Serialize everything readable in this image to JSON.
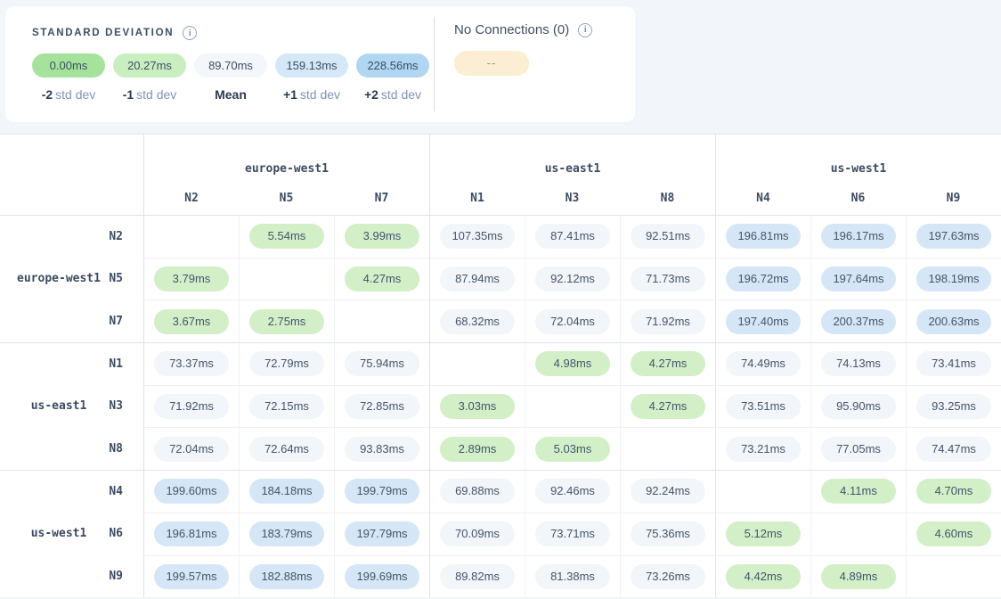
{
  "legend_card": {
    "title": "STANDARD DEVIATION",
    "items": [
      {
        "value": "0.00ms",
        "label_prefix": "-2",
        "label_suffix": "std dev",
        "color": "#a5e39d"
      },
      {
        "value": "20.27ms",
        "label_prefix": "-1",
        "label_suffix": "std dev",
        "color": "#c9efc0"
      },
      {
        "value": "89.70ms",
        "label_prefix": "Mean",
        "label_suffix": "",
        "color": "#f3f6fb"
      },
      {
        "value": "159.13ms",
        "label_prefix": "+1",
        "label_suffix": "std dev",
        "color": "#d5e8f7"
      },
      {
        "value": "228.56ms",
        "label_prefix": "+2",
        "label_suffix": "std dev",
        "color": "#b0d6f2"
      }
    ],
    "no_connections": {
      "title": "No Connections (0)",
      "chip_label": "--",
      "chip_color": "#fceed2"
    }
  },
  "matrix": {
    "cell_colors": {
      "green": "#d3efc8",
      "neutral": "#f2f5f9",
      "blue": "#d5e7f6"
    },
    "column_groups": [
      {
        "name": "europe-west1",
        "nodes": [
          "N2",
          "N5",
          "N7"
        ]
      },
      {
        "name": "us-east1",
        "nodes": [
          "N1",
          "N3",
          "N8"
        ]
      },
      {
        "name": "us-west1",
        "nodes": [
          "N4",
          "N6",
          "N9"
        ]
      }
    ],
    "rows": [
      {
        "node": "N2",
        "region": "europe-west1",
        "region_label_row": false,
        "cells": [
          null,
          {
            "v": "5.54ms",
            "tone": "green"
          },
          {
            "v": "3.99ms",
            "tone": "green"
          },
          {
            "v": "107.35ms",
            "tone": "neutral"
          },
          {
            "v": "87.41ms",
            "tone": "neutral"
          },
          {
            "v": "92.51ms",
            "tone": "neutral"
          },
          {
            "v": "196.81ms",
            "tone": "blue"
          },
          {
            "v": "196.17ms",
            "tone": "blue"
          },
          {
            "v": "197.63ms",
            "tone": "blue"
          }
        ]
      },
      {
        "node": "N5",
        "region": "europe-west1",
        "region_label_row": true,
        "cells": [
          {
            "v": "3.79ms",
            "tone": "green"
          },
          null,
          {
            "v": "4.27ms",
            "tone": "green"
          },
          {
            "v": "87.94ms",
            "tone": "neutral"
          },
          {
            "v": "92.12ms",
            "tone": "neutral"
          },
          {
            "v": "71.73ms",
            "tone": "neutral"
          },
          {
            "v": "196.72ms",
            "tone": "blue"
          },
          {
            "v": "197.64ms",
            "tone": "blue"
          },
          {
            "v": "198.19ms",
            "tone": "blue"
          }
        ]
      },
      {
        "node": "N7",
        "region": "europe-west1",
        "region_label_row": false,
        "cells": [
          {
            "v": "3.67ms",
            "tone": "green"
          },
          {
            "v": "2.75ms",
            "tone": "green"
          },
          null,
          {
            "v": "68.32ms",
            "tone": "neutral"
          },
          {
            "v": "72.04ms",
            "tone": "neutral"
          },
          {
            "v": "71.92ms",
            "tone": "neutral"
          },
          {
            "v": "197.40ms",
            "tone": "blue"
          },
          {
            "v": "200.37ms",
            "tone": "blue"
          },
          {
            "v": "200.63ms",
            "tone": "blue"
          }
        ]
      },
      {
        "node": "N1",
        "region": "us-east1",
        "region_label_row": false,
        "cells": [
          {
            "v": "73.37ms",
            "tone": "neutral"
          },
          {
            "v": "72.79ms",
            "tone": "neutral"
          },
          {
            "v": "75.94ms",
            "tone": "neutral"
          },
          null,
          {
            "v": "4.98ms",
            "tone": "green"
          },
          {
            "v": "4.27ms",
            "tone": "green"
          },
          {
            "v": "74.49ms",
            "tone": "neutral"
          },
          {
            "v": "74.13ms",
            "tone": "neutral"
          },
          {
            "v": "73.41ms",
            "tone": "neutral"
          }
        ]
      },
      {
        "node": "N3",
        "region": "us-east1",
        "region_label_row": true,
        "cells": [
          {
            "v": "71.92ms",
            "tone": "neutral"
          },
          {
            "v": "72.15ms",
            "tone": "neutral"
          },
          {
            "v": "72.85ms",
            "tone": "neutral"
          },
          {
            "v": "3.03ms",
            "tone": "green"
          },
          null,
          {
            "v": "4.27ms",
            "tone": "green"
          },
          {
            "v": "73.51ms",
            "tone": "neutral"
          },
          {
            "v": "95.90ms",
            "tone": "neutral"
          },
          {
            "v": "93.25ms",
            "tone": "neutral"
          }
        ]
      },
      {
        "node": "N8",
        "region": "us-east1",
        "region_label_row": false,
        "cells": [
          {
            "v": "72.04ms",
            "tone": "neutral"
          },
          {
            "v": "72.64ms",
            "tone": "neutral"
          },
          {
            "v": "93.83ms",
            "tone": "neutral"
          },
          {
            "v": "2.89ms",
            "tone": "green"
          },
          {
            "v": "5.03ms",
            "tone": "green"
          },
          null,
          {
            "v": "73.21ms",
            "tone": "neutral"
          },
          {
            "v": "77.05ms",
            "tone": "neutral"
          },
          {
            "v": "74.47ms",
            "tone": "neutral"
          }
        ]
      },
      {
        "node": "N4",
        "region": "us-west1",
        "region_label_row": false,
        "cells": [
          {
            "v": "199.60ms",
            "tone": "blue"
          },
          {
            "v": "184.18ms",
            "tone": "blue"
          },
          {
            "v": "199.79ms",
            "tone": "blue"
          },
          {
            "v": "69.88ms",
            "tone": "neutral"
          },
          {
            "v": "92.46ms",
            "tone": "neutral"
          },
          {
            "v": "92.24ms",
            "tone": "neutral"
          },
          null,
          {
            "v": "4.11ms",
            "tone": "green"
          },
          {
            "v": "4.70ms",
            "tone": "green"
          }
        ]
      },
      {
        "node": "N6",
        "region": "us-west1",
        "region_label_row": true,
        "cells": [
          {
            "v": "196.81ms",
            "tone": "blue"
          },
          {
            "v": "183.79ms",
            "tone": "blue"
          },
          {
            "v": "197.79ms",
            "tone": "blue"
          },
          {
            "v": "70.09ms",
            "tone": "neutral"
          },
          {
            "v": "73.71ms",
            "tone": "neutral"
          },
          {
            "v": "75.36ms",
            "tone": "neutral"
          },
          {
            "v": "5.12ms",
            "tone": "green"
          },
          null,
          {
            "v": "4.60ms",
            "tone": "green"
          }
        ]
      },
      {
        "node": "N9",
        "region": "us-west1",
        "region_label_row": false,
        "cells": [
          {
            "v": "199.57ms",
            "tone": "blue"
          },
          {
            "v": "182.88ms",
            "tone": "blue"
          },
          {
            "v": "199.69ms",
            "tone": "blue"
          },
          {
            "v": "89.82ms",
            "tone": "neutral"
          },
          {
            "v": "81.38ms",
            "tone": "neutral"
          },
          {
            "v": "73.26ms",
            "tone": "neutral"
          },
          {
            "v": "4.42ms",
            "tone": "green"
          },
          {
            "v": "4.89ms",
            "tone": "green"
          },
          null
        ]
      }
    ]
  }
}
